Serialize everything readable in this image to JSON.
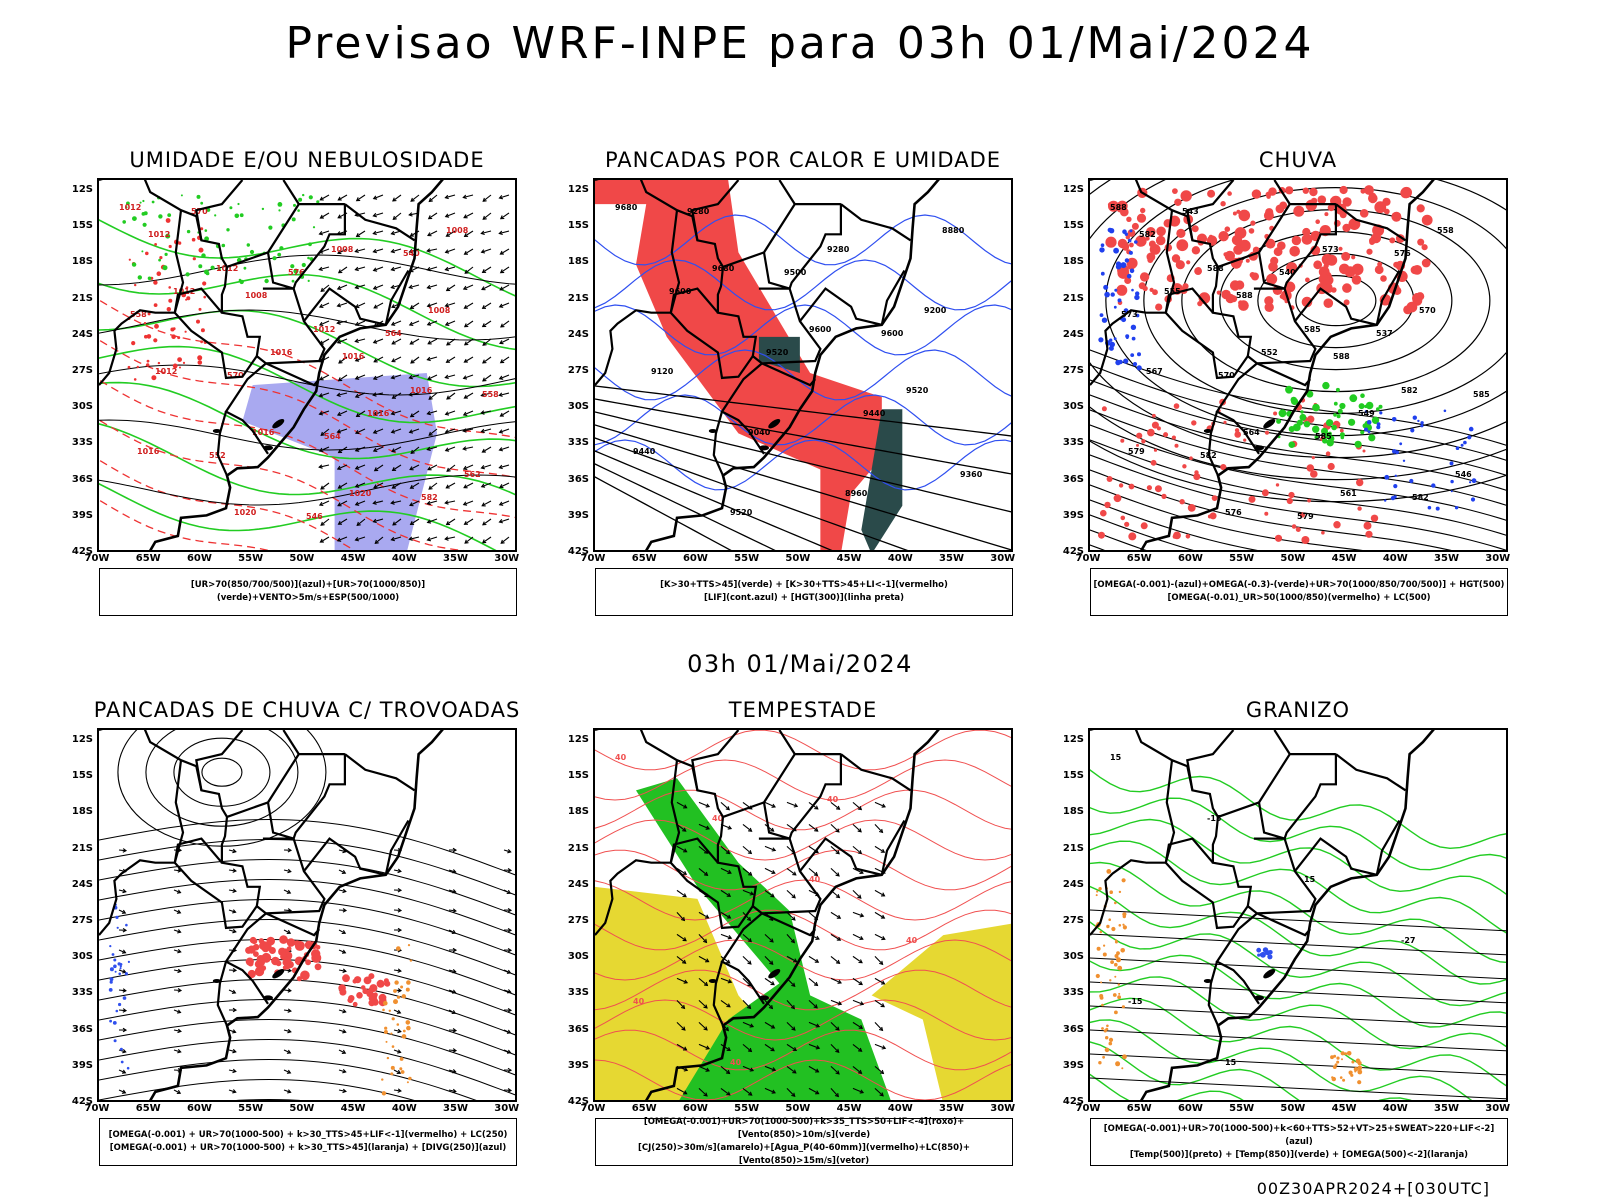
{
  "header": {
    "title": "Previsao WRF-INPE  para 03h 01/Mai/2024",
    "mid_title": "03h 01/Mai/2024",
    "footer": "00Z30APR2024+[030UTC]"
  },
  "axes": {
    "lat_labels": [
      "12S",
      "15S",
      "18S",
      "21S",
      "24S",
      "27S",
      "30S",
      "33S",
      "36S",
      "39S",
      "42S"
    ],
    "lon_labels": [
      "70W",
      "65W",
      "60W",
      "55W",
      "50W",
      "45W",
      "40W",
      "35W",
      "30W"
    ]
  },
  "panels": [
    {
      "id": "umidade",
      "title": "UMIDADE E/OU NEBULOSIDADE",
      "legend": [
        "[UR>70(850/700/500)](azul)+[UR>70(1000/850)](verde)+VENTO>5m/s+ESP(500/1000)"
      ],
      "contour_labels": [
        "1012",
        "1012",
        "1012",
        "1016",
        "1016",
        "1020",
        "1008",
        "1008",
        "1012",
        "1016",
        "1020",
        "1008",
        "1012",
        "1016",
        "1016",
        "562",
        "570",
        "576",
        "564",
        "558",
        "552",
        "546",
        "540",
        "558",
        "570",
        "564",
        "582",
        "1012",
        "1008",
        "1016"
      ]
    },
    {
      "id": "pancadas_calor",
      "title": "PANCADAS POR CALOR E UMIDADE",
      "legend": [
        "[K>30+TTS>45](verde) + [K>30+TTS>45+LI<-1](vermelho)",
        "[LIF](cont.azul) + [HGT(300)](linha preta)"
      ],
      "contour_labels": [
        "9680",
        "9680",
        "9600",
        "9520",
        "9440",
        "9520",
        "9280",
        "9200",
        "9120",
        "9040",
        "8960",
        "8880",
        "9600",
        "9520",
        "9440",
        "9360",
        "9280",
        "9500",
        "9600"
      ]
    },
    {
      "id": "chuva",
      "title": "CHUVA",
      "legend": [
        "[OMEGA(-0.001)-(azul)+OMEGA(-0.3)-(verde)+UR>70(1000/850/700/500)] + HGT(500)",
        "[OMEGA(-0.01)_UR>50(1000/850)(vermelho) + LC(500)"
      ],
      "contour_labels": [
        "588",
        "588",
        "585",
        "582",
        "579",
        "576",
        "573",
        "570",
        "567",
        "564",
        "561",
        "558",
        "555",
        "552",
        "549",
        "546",
        "543",
        "540",
        "537",
        "585",
        "582",
        "579",
        "576",
        "573",
        "570",
        "585",
        "582",
        "582",
        "588",
        "588"
      ]
    },
    {
      "id": "trovoadas",
      "title": "PANCADAS DE CHUVA C/ TROVOADAS",
      "legend": [
        "[OMEGA(-0.001) + UR>70(1000-500) + k>30_TTS>45+LIF<-1](vermelho) + LC(250)",
        "[OMEGA(-0.001) + UR>70(1000-500) + k>30_TTS>45](laranja) + [DIVG(250)](azul)"
      ],
      "contour_labels": []
    },
    {
      "id": "tempestade",
      "title": "TEMPESTADE",
      "legend": [
        "[OMEGA(-0.001)+UR>70(1000-500)+k>35_TTS>50+LIF<-4](roxo)+[Vento(850)>10m/s](verde)",
        "[CJ(250)>30m/s](amarelo)+[Agua_P(40-60mm)](vermelho)+LC(850)+[Vento(850)>15m/s](vetor)"
      ],
      "contour_labels": [
        "40",
        "40",
        "40",
        "40",
        "40",
        "40",
        "40"
      ]
    },
    {
      "id": "granizo",
      "title": "GRANIZO",
      "legend": [
        "[OMEGA(-0.001)+UR>70(1000-500)+k<60+TTS>52+VT>25+SWEAT>220+LIF<-2](azul)",
        "[Temp(500)](preto) + [Temp(850)](verde) + [OMEGA(500)<-2](laranja)"
      ],
      "contour_labels": [
        "15",
        "-15",
        "15",
        "-27",
        "-15",
        "15"
      ]
    }
  ],
  "colors": {
    "blue_humidity": "#a9a9f0",
    "green_line": "#22cc22",
    "red_line": "#ee3333",
    "red_fill": "#f04848",
    "dark_teal": "#2a4a4a",
    "yellow": "#e6d832",
    "green_fill": "#22c022",
    "orange": "#f09030",
    "blue_dots": "#3050ee"
  }
}
